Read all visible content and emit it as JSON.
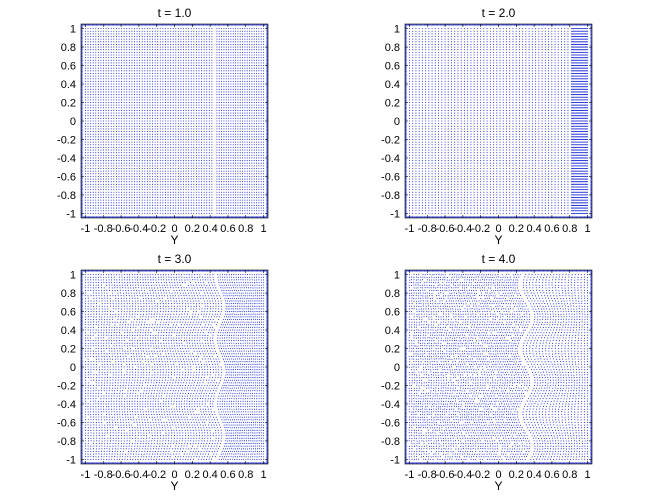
{
  "colors": {
    "points": "#1f2fd6",
    "axes": "#000000",
    "background": "#ffffff"
  },
  "chart_data": [
    {
      "type": "scatter",
      "title": "t = 1.0",
      "xlabel": "Y",
      "ylabel": "",
      "xlim": [
        -1.05,
        1.05
      ],
      "ylim": [
        -1.05,
        1.05
      ],
      "xticks": [
        -1,
        -0.8,
        -0.6,
        -0.4,
        -0.2,
        0,
        0.2,
        0.4,
        0.6,
        0.8,
        1
      ],
      "xticklabels": [
        "-1",
        "-0.8",
        "-0.6",
        "-0.4",
        "-0.2",
        "0",
        "0.2",
        "0.4",
        "0.6",
        "0.8",
        "1"
      ],
      "yticks": [
        1,
        0.8,
        0.6,
        0.4,
        0.2,
        0,
        -0.2,
        -0.4,
        -0.6,
        -0.8,
        -1
      ],
      "yticklabels": [
        "1",
        "0.8",
        "0.6",
        "0.4",
        "0.2",
        "0",
        "-0.2",
        "-0.4",
        "-0.6",
        "-0.8",
        "-1"
      ],
      "grid": false,
      "front_x": 0.42,
      "front_amplitude": 0.0,
      "noise": 0.0
    },
    {
      "type": "scatter",
      "title": "t = 2.0",
      "xlabel": "Y",
      "ylabel": "",
      "xlim": [
        -1.05,
        1.05
      ],
      "ylim": [
        -1.05,
        1.05
      ],
      "xticks": [
        -1,
        -0.8,
        -0.6,
        -0.4,
        -0.2,
        0,
        0.2,
        0.4,
        0.6,
        0.8,
        1
      ],
      "xticklabels": [
        "-1",
        "-0.8",
        "-0.6",
        "-0.4",
        "-0.2",
        "0",
        "0.2",
        "0.4",
        "0.6",
        "0.8",
        "1"
      ],
      "yticks": [
        1,
        0.8,
        0.6,
        0.4,
        0.2,
        0,
        -0.2,
        -0.4,
        -0.6,
        -0.8,
        -1
      ],
      "yticklabels": [
        "1",
        "0.8",
        "0.6",
        "0.4",
        "0.2",
        "0",
        "-0.2",
        "-0.4",
        "-0.6",
        "-0.8",
        "-1"
      ],
      "grid": false,
      "front_x": 0.78,
      "front_amplitude": 0.0,
      "noise": 0.0
    },
    {
      "type": "scatter",
      "title": "t = 3.0",
      "xlabel": "Y",
      "ylabel": "",
      "xlim": [
        -1.05,
        1.05
      ],
      "ylim": [
        -1.05,
        1.05
      ],
      "xticks": [
        -1,
        -0.8,
        -0.6,
        -0.4,
        -0.2,
        0,
        0.2,
        0.4,
        0.6,
        0.8,
        1
      ],
      "xticklabels": [
        "-1",
        "-0.8",
        "-0.6",
        "-0.4",
        "-0.2",
        "0",
        "0.2",
        "0.4",
        "0.6",
        "0.8",
        "1"
      ],
      "yticks": [
        1,
        0.8,
        0.6,
        0.4,
        0.2,
        0,
        -0.2,
        -0.4,
        -0.6,
        -0.8,
        -1
      ],
      "yticklabels": [
        "1",
        "0.8",
        "0.6",
        "0.4",
        "0.2",
        "0",
        "-0.2",
        "-0.4",
        "-0.6",
        "-0.8",
        "-1"
      ],
      "grid": false,
      "front_x": 0.48,
      "front_amplitude": 0.05,
      "noise": 0.35
    },
    {
      "type": "scatter",
      "title": "t = 4.0",
      "xlabel": "Y",
      "ylabel": "",
      "xlim": [
        -1.05,
        1.05
      ],
      "ylim": [
        -1.05,
        1.05
      ],
      "xticks": [
        -1,
        -0.8,
        -0.6,
        -0.4,
        -0.2,
        0,
        0.2,
        0.4,
        0.6,
        0.8,
        1
      ],
      "xticklabels": [
        "-1",
        "-0.8",
        "-0.6",
        "-0.4",
        "-0.2",
        "0",
        "0.2",
        "0.4",
        "0.6",
        "0.8",
        "1"
      ],
      "yticks": [
        1,
        0.8,
        0.6,
        0.4,
        0.2,
        0,
        -0.2,
        -0.4,
        -0.6,
        -0.8,
        -1
      ],
      "yticklabels": [
        "1",
        "0.8",
        "0.6",
        "0.4",
        "0.2",
        "0",
        "-0.2",
        "-0.4",
        "-0.6",
        "-0.8",
        "-1"
      ],
      "grid": false,
      "front_x": 0.28,
      "front_amplitude": 0.07,
      "noise": 0.6
    }
  ]
}
